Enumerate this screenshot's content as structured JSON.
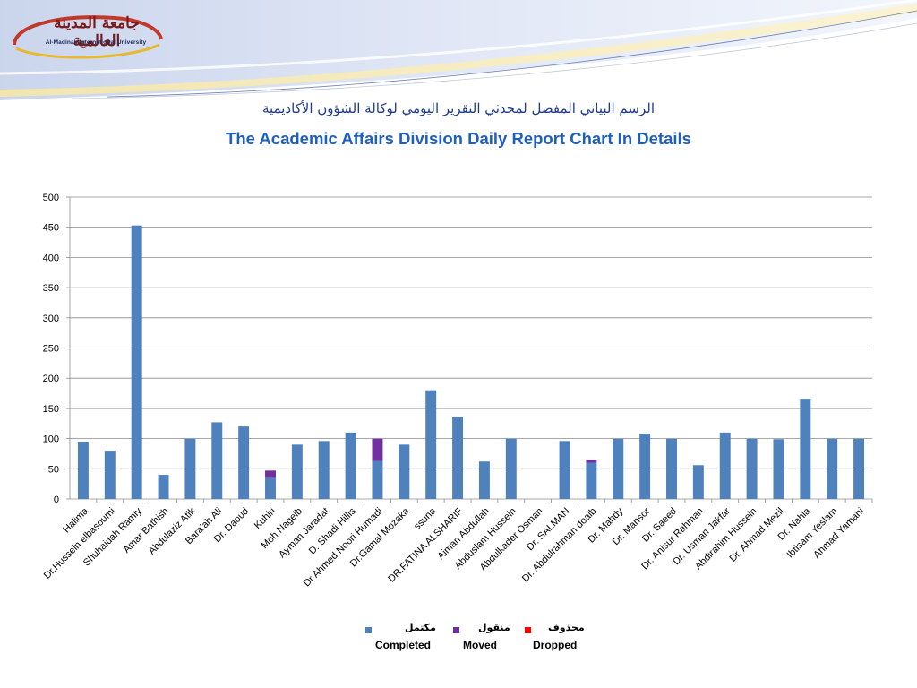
{
  "logo": {
    "arabic": "جامعة المدينة العالمية",
    "english": "Al-Madinah International University"
  },
  "title_ar": "الرسم البياني المفصل لمحدثي التقرير اليومي لوكالة الشؤون الأكاديمية",
  "title_en": "The Academic Affairs Division Daily Report Chart In Details",
  "colors": {
    "completed": "#4f81bd",
    "moved": "#7030a0",
    "dropped": "#ff0000",
    "title": "#1f5fbf"
  },
  "legend": [
    {
      "ar": "مكتمل",
      "en": "Completed",
      "color_key": "completed"
    },
    {
      "ar": "منقول",
      "en": "Moved",
      "color_key": "moved"
    },
    {
      "ar": "محذوف",
      "en": "Dropped",
      "color_key": "dropped"
    }
  ],
  "chart_data": {
    "type": "bar",
    "stacked": true,
    "title": "The Academic Affairs Division Daily Report Chart In Details",
    "xlabel": "",
    "ylabel": "",
    "ylim": [
      0,
      500
    ],
    "yticks": [
      0,
      50,
      100,
      150,
      200,
      250,
      300,
      350,
      400,
      450,
      500
    ],
    "grid": true,
    "legend_position": "bottom",
    "categories": [
      "Halima",
      "Dr.Hussein elbasoumi",
      "Shuhaidah Ramly",
      "Amar Bathish",
      "Abdulaziz Atik",
      "Bara'ah Ali",
      "Dr. Daoud",
      "Kuhiri",
      "Moh.Nageib",
      "Ayman Jaradat",
      "D. Shadi Hillis",
      "Dr Ahmed Noori Humadi",
      "Dr.Gamal Mozaka",
      "ssuna",
      "DR.FATINA ALSHARIF",
      "Aiman Abdullah",
      "Abduslam Hussein",
      "Abdulkader Osman",
      "Dr. SALMAN",
      "Dr. Abdulrahman doaib",
      "Dr. Mahdy",
      "Dr. Mansor",
      "Dr. Saeed",
      "Dr. Anisur Rahman",
      "Dr. Usman Jakfar",
      "Abdirahim Hussein",
      "Dr. Ahmad Mezil",
      "Dr. Nahla",
      "Ibtisam Yeslam",
      "Ahmad Yamani"
    ],
    "series": [
      {
        "name": "Completed",
        "values": [
          95,
          80,
          453,
          40,
          100,
          127,
          120,
          35,
          90,
          96,
          110,
          63,
          90,
          180,
          136,
          62,
          100,
          0,
          96,
          60,
          100,
          108,
          100,
          56,
          110,
          100,
          99,
          166,
          100,
          100
        ]
      },
      {
        "name": "Moved",
        "values": [
          0,
          0,
          0,
          0,
          0,
          0,
          0,
          12,
          0,
          0,
          0,
          37,
          0,
          0,
          0,
          0,
          0,
          0,
          0,
          5,
          0,
          0,
          0,
          0,
          0,
          0,
          0,
          0,
          0,
          0
        ]
      },
      {
        "name": "Dropped",
        "values": [
          0,
          0,
          0,
          0,
          0,
          0,
          0,
          0,
          0,
          0,
          0,
          0,
          0,
          0,
          0,
          0,
          0,
          0,
          0,
          0,
          0,
          0,
          0,
          0,
          0,
          0,
          0,
          0,
          0,
          0
        ]
      }
    ]
  }
}
